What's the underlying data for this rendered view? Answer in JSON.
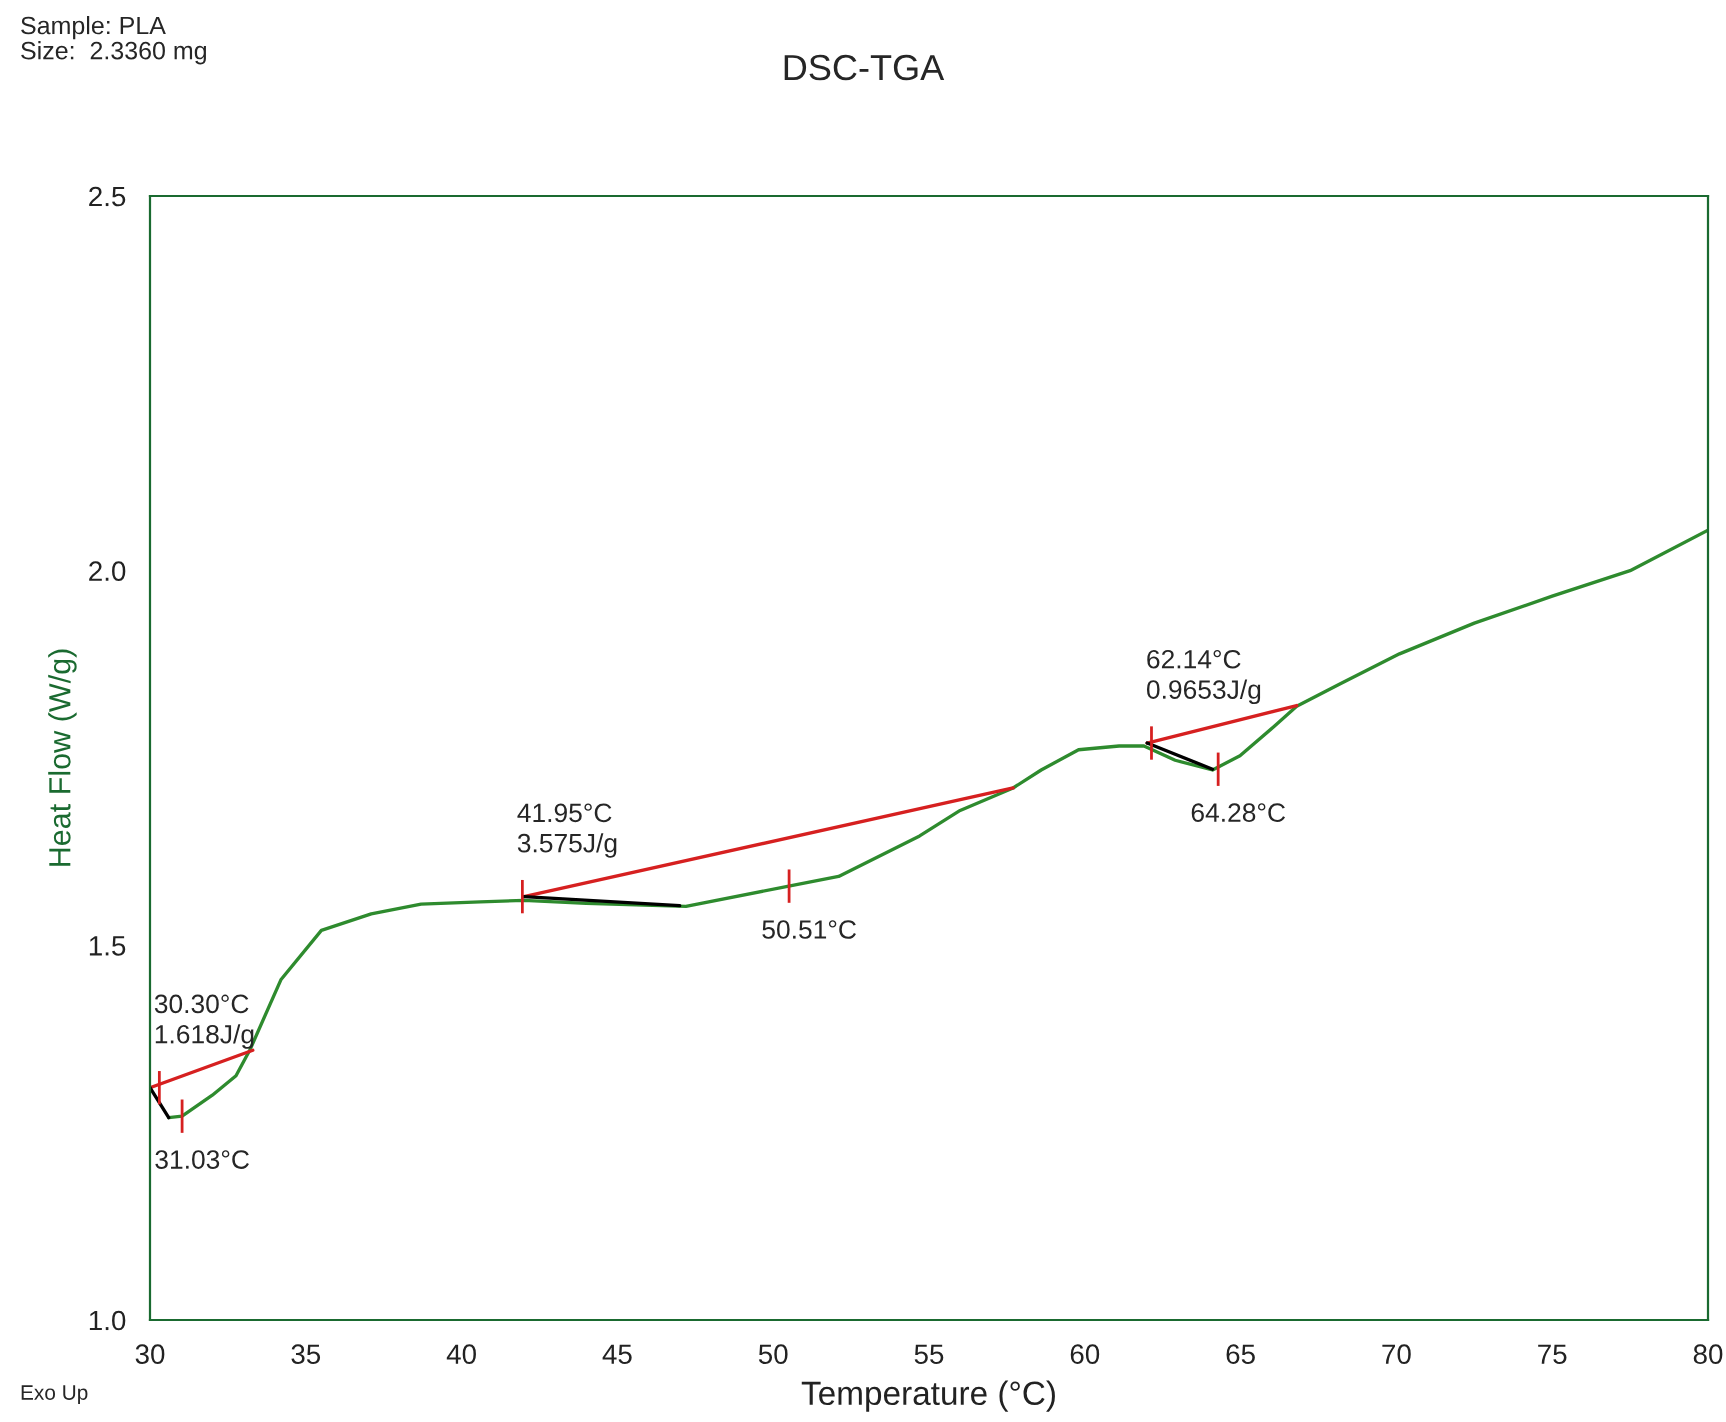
{
  "chart_data": {
    "type": "line",
    "title": "DSC-TGA",
    "xlabel": "Temperature (°C)",
    "ylabel": "Heat Flow (W/g)",
    "xlim": [
      30,
      80
    ],
    "ylim": [
      1.0,
      2.5
    ],
    "xticks": [
      30,
      35,
      40,
      45,
      50,
      55,
      60,
      65,
      70,
      75,
      80
    ],
    "yticks": [
      {
        "value": 1.0,
        "label": "1.0"
      },
      {
        "value": 1.5,
        "label": "1.5"
      },
      {
        "value": 2.0,
        "label": "2.0"
      },
      {
        "value": 2.5,
        "label": "2.5"
      }
    ],
    "grid": false,
    "line_style": "solid",
    "marker": "none",
    "series": [
      {
        "color": "#2e8b2e",
        "x": [
          30.6,
          31.03,
          32.0,
          32.76,
          33.2,
          34.2,
          35.5,
          37.1,
          38.7,
          40.6,
          42.0,
          44.0,
          47.2,
          50.5,
          52.1,
          54.7,
          56.0,
          57.7,
          58.6,
          59.8,
          61.1,
          61.9,
          62.9,
          64.1,
          64.98,
          66.1,
          66.8,
          68.2,
          70.1,
          72.5,
          75.0,
          77.5,
          80.0
        ],
        "values": [
          1.27,
          1.272,
          1.3,
          1.326,
          1.36,
          1.454,
          1.52,
          1.542,
          1.555,
          1.558,
          1.56,
          1.556,
          1.552,
          1.579,
          1.592,
          1.646,
          1.68,
          1.71,
          1.734,
          1.761,
          1.766,
          1.766,
          1.747,
          1.734,
          1.753,
          1.793,
          1.819,
          1.849,
          1.889,
          1.93,
          1.966,
          2.0,
          2.054
        ]
      },
      {
        "color": "#d62020",
        "x": [
          30.0,
          33.3
        ],
        "values": [
          1.31,
          1.36
        ]
      },
      {
        "color": "#d62020",
        "x": [
          42.0,
          57.7
        ],
        "values": [
          1.565,
          1.71
        ]
      },
      {
        "color": "#d62020",
        "x": [
          62.0,
          66.8
        ],
        "values": [
          1.77,
          1.82
        ]
      },
      {
        "color": "#000000",
        "x": [
          30.0,
          30.6
        ],
        "values": [
          1.31,
          1.27
        ]
      },
      {
        "color": "#000000",
        "x": [
          42.0,
          47.0
        ],
        "values": [
          1.565,
          1.553
        ]
      },
      {
        "color": "#000000",
        "x": [
          62.0,
          64.1
        ],
        "values": [
          1.77,
          1.735
        ]
      }
    ],
    "annotations": [
      "Sample: PLA\nSize:  2.3360 mg",
      "Exo Up",
      {
        "text": "30.30°C\n1.618J/g",
        "x": 30.3,
        "y": 1.31
      },
      {
        "text": "31.03°C",
        "x": 31.03,
        "y": 1.272
      },
      {
        "text": "41.95°C\n3.575J/g",
        "x": 41.95,
        "y": 1.565
      },
      {
        "text": "50.51°C",
        "x": 50.51,
        "y": 1.579
      },
      {
        "text": "62.14°C\n0.9653J/g",
        "x": 62.14,
        "y": 1.77
      },
      {
        "text": "64.28°C",
        "x": 64.28,
        "y": 1.735
      }
    ]
  }
}
